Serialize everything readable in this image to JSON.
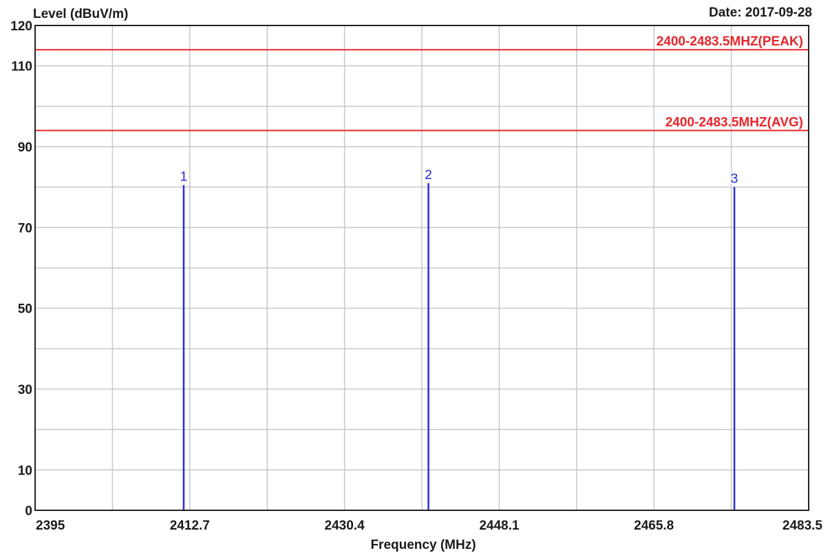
{
  "colors": {
    "limit_line": "#e8262c",
    "marker": "#2a2ad8",
    "grid": "#c8c8c8",
    "frame": "#222222",
    "text": "#1a1a1a"
  },
  "chart_data": {
    "type": "line",
    "date_label": "Date: 2017-09-28",
    "ylabel": "Level (dBuV/m)",
    "xlabel": "Frequency (MHz)",
    "xlim": [
      2395,
      2483.5
    ],
    "ylim": [
      0,
      120
    ],
    "x_ticks": [
      "2395",
      "2412.7",
      "2430.4",
      "2448.1",
      "2465.8",
      "2483.5"
    ],
    "x_tick_values": [
      2395,
      2412.7,
      2430.4,
      2448.1,
      2465.8,
      2483.5
    ],
    "y_ticks": [
      "0",
      "10",
      "30",
      "50",
      "70",
      "90",
      "110",
      "120"
    ],
    "y_tick_values": [
      0,
      10,
      30,
      50,
      70,
      90,
      110,
      120
    ],
    "x_minor_grid": [
      2403.85,
      2421.55,
      2439.25,
      2456.95,
      2474.65
    ],
    "y_minor_grid": [
      20,
      40,
      60,
      80,
      100
    ],
    "grid": true,
    "limit_lines": [
      {
        "label": "2400-2483.5MHZ(PEAK)",
        "y": 114
      },
      {
        "label": "2400-2483.5MHZ(AVG)",
        "y": 94
      }
    ],
    "markers": [
      {
        "label": "1",
        "x": 2412,
        "y": 80.5
      },
      {
        "label": "2",
        "x": 2440,
        "y": 81
      },
      {
        "label": "3",
        "x": 2475,
        "y": 80
      }
    ]
  }
}
